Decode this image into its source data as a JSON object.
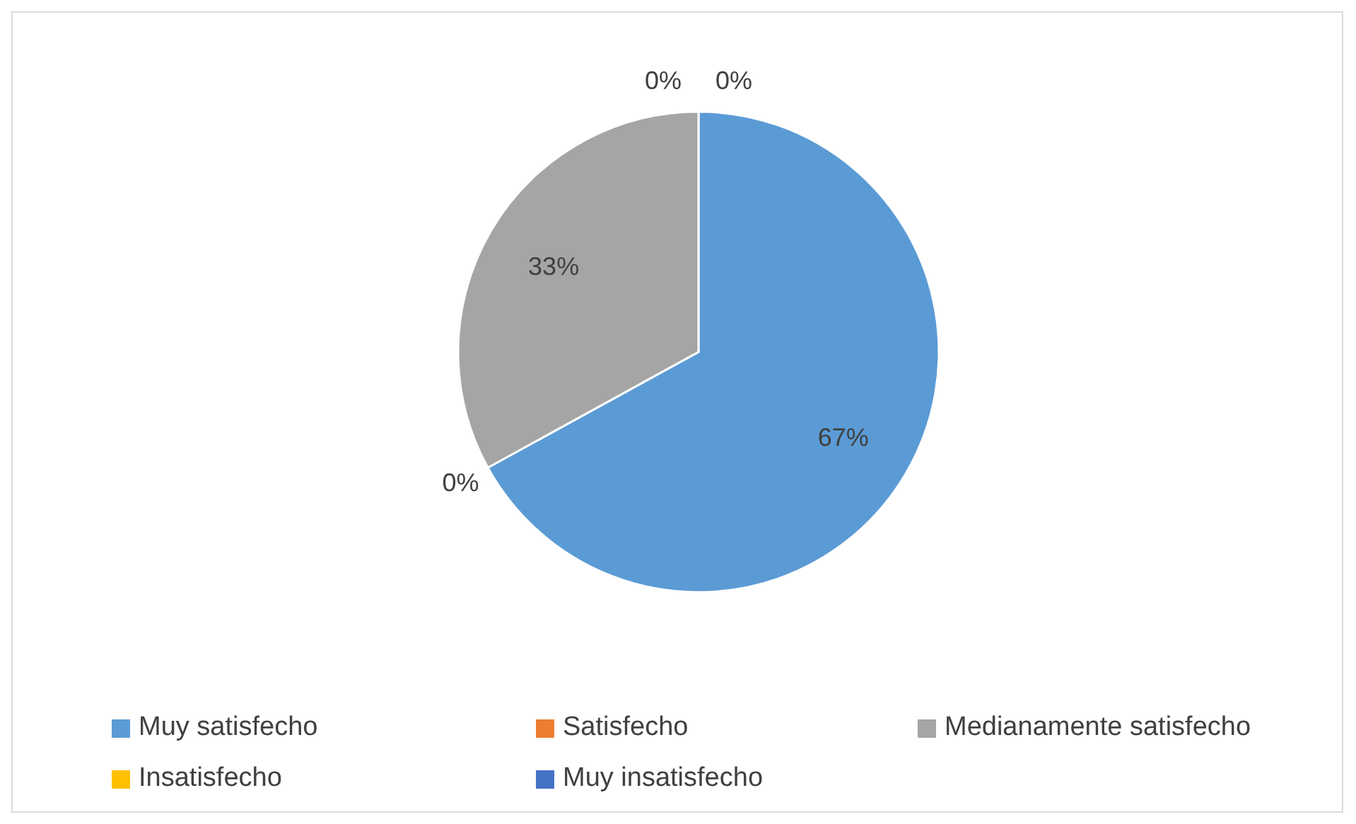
{
  "chart_data": {
    "type": "pie",
    "categories": [
      "Muy satisfecho",
      "Satisfecho",
      "Medianamente satisfecho",
      "Insatisfecho",
      "Muy insatisfecho"
    ],
    "values": [
      67,
      0,
      33,
      0,
      0
    ],
    "colors": [
      "#5b9bd5",
      "#ed7d31",
      "#a5a5a5",
      "#ffc000",
      "#4472c4"
    ],
    "value_labels": [
      "67%",
      "0%",
      "33%",
      "0%",
      "0%"
    ],
    "legend": "bottom"
  }
}
